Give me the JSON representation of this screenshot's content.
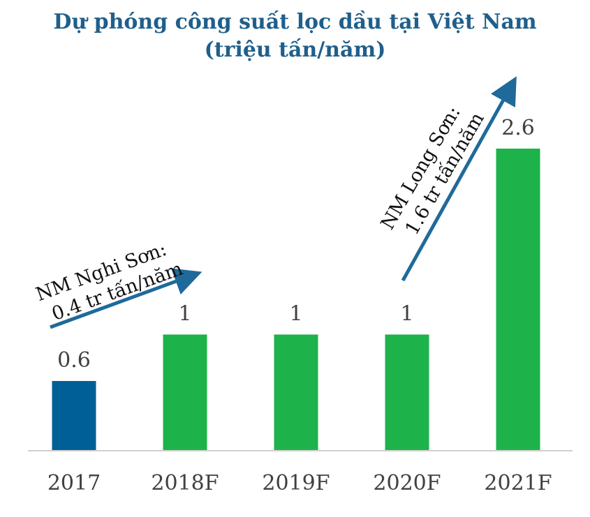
{
  "chart_data": {
    "type": "bar",
    "title": "Dự phóng công suất lọc dầu tại Việt Nam",
    "subtitle": "(triệu tấn/năm)",
    "categories": [
      "2017",
      "2018F",
      "2019F",
      "2020F",
      "2021F"
    ],
    "values": [
      0.6,
      1,
      1,
      1,
      2.6
    ],
    "value_labels": [
      "0.6",
      "1",
      "1",
      "1",
      "2.6"
    ],
    "bar_colors": [
      "#005f96",
      "#1db34a",
      "#1db34a",
      "#1db34a",
      "#1db34a"
    ],
    "annotations": [
      {
        "line1": "NM Nghi Sơn:",
        "line2": "0.4 tr tấn/năm"
      },
      {
        "line1": "NM Long Sơn:",
        "line2": "1.6 tr tấn/năm"
      }
    ],
    "colors": {
      "title": "#1f5f8b",
      "arrow": "#1f6a9a",
      "axis": "#d0d0d0"
    },
    "grid": false,
    "legend": "none",
    "ylim": [
      0,
      2.6
    ]
  }
}
